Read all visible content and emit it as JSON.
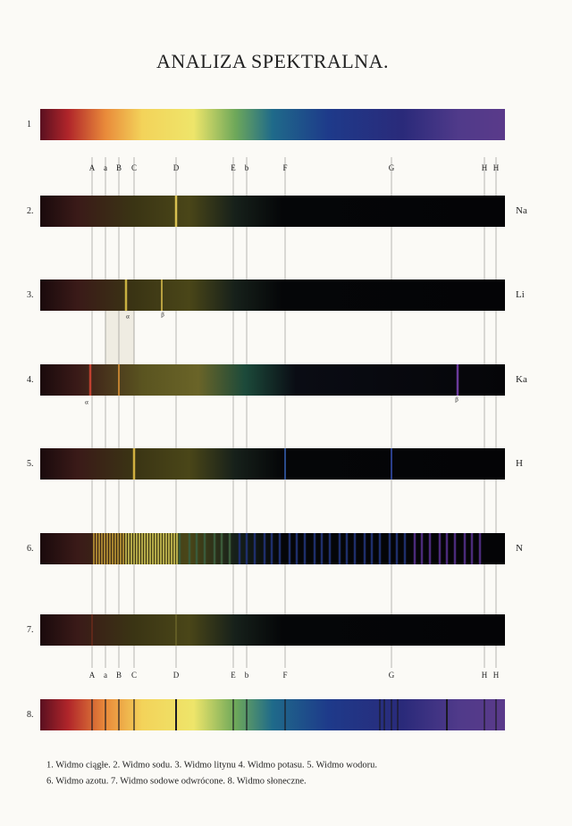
{
  "title": "ANALIZA SPEKTRALNA.",
  "line_labels_top": [
    "A",
    "a",
    "B",
    "C",
    "D",
    "E",
    "b",
    "F",
    "G",
    "H",
    "H"
  ],
  "line_labels_bottom": [
    "A",
    "a",
    "B",
    "C",
    "D",
    "E",
    "b",
    "F",
    "G",
    "H",
    "H"
  ],
  "spectra": [
    {
      "number": "1"
    },
    {
      "number": "2.",
      "element": "Na"
    },
    {
      "number": "3.",
      "element": "Li",
      "marks": [
        "α",
        "β"
      ]
    },
    {
      "number": "4.",
      "element": "Ka",
      "marks": [
        "α",
        "β"
      ]
    },
    {
      "number": "5.",
      "element": "H"
    },
    {
      "number": "6.",
      "element": "N"
    },
    {
      "number": "7."
    },
    {
      "number": "8."
    }
  ],
  "caption": [
    "1. Widmo ciągłe.  2. Widmo sodu.  3. Widmo litynu  4. Widmo potasu.  5. Widmo wodoru.",
    "6. Widmo azotu.  7. Widmo sodowe odwrócone.  8. Widmo słoneczne."
  ]
}
